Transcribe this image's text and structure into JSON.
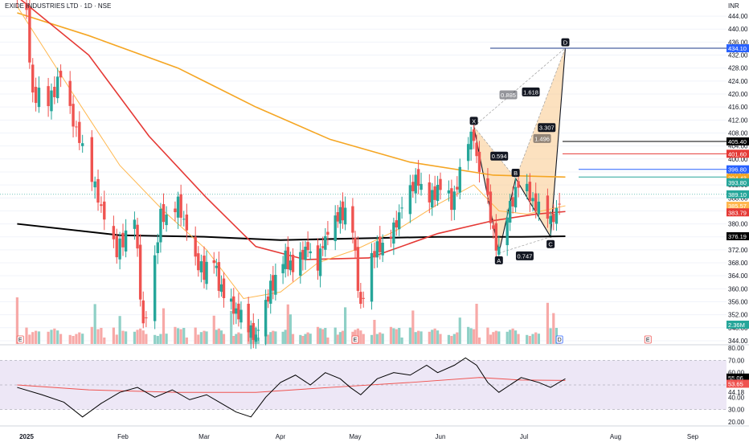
{
  "header": {
    "symbol_title": "EXIDE INDUSTRIES LTD · 1D · NSE",
    "currency": "INR"
  },
  "colors": {
    "up": "#26a69a",
    "down": "#ef5350",
    "up_vol": "#8fd0c6",
    "down_vol": "#f7a9a7",
    "ma_black": "#000000",
    "ma_orange": "#f5a623",
    "ma_red": "#e53935",
    "ma_light": "#ffb74d",
    "pattern_fill": "#f9c98a",
    "rsi": "#000000",
    "rsi_ma": "#ef5350",
    "rsi_band": "#ede7f6",
    "level_blue": "#1e3a8a",
    "level_black": "#000000",
    "level_red": "#e53935",
    "level_teal": "#26a69a"
  },
  "chart_data": [
    {
      "type": "candlestick",
      "title": "EXIDE INDUSTRIES LTD · 1D · NSE",
      "y_axis": {
        "unit": "INR",
        "ticks": [
          444,
          440,
          436,
          432,
          428,
          424,
          420,
          416,
          412,
          408,
          404,
          400,
          396,
          392,
          388,
          384,
          380,
          376,
          372,
          368,
          364,
          360,
          356,
          352,
          348,
          344
        ],
        "range": [
          343,
          446
        ]
      },
      "x_axis": {
        "labels": [
          "2025",
          "Feb",
          "Mar",
          "Apr",
          "May",
          "Jun",
          "Jul",
          "Aug",
          "Sep"
        ]
      },
      "series": [
        {
          "name": "price",
          "type": "candlestick",
          "points": []
        },
        {
          "name": "MA 200 (black)",
          "type": "line",
          "color": "#000000"
        },
        {
          "name": "MA 100 (orange)",
          "type": "line",
          "color": "#f5a623"
        },
        {
          "name": "MA 50 (red)",
          "type": "line",
          "color": "#e53935"
        },
        {
          "name": "MA 20 (light orange)",
          "type": "line",
          "color": "#ffb74d"
        },
        {
          "name": "Volume",
          "type": "bar",
          "last_label": "2.36M"
        }
      ],
      "harmonic_pattern": {
        "points": [
          {
            "label": "X",
            "price": 410.0
          },
          {
            "label": "A",
            "price": 371.0
          },
          {
            "label": "B",
            "price": 394.0
          },
          {
            "label": "C",
            "price": 376.0
          },
          {
            "label": "D",
            "price": 434.2
          }
        ],
        "ratios": [
          "0.594",
          "0.747",
          "1.618",
          "3.307",
          "0.885",
          "1.496"
        ]
      },
      "price_labels": [
        {
          "value": "434.10",
          "color": "#2962ff"
        },
        {
          "value": "405.40",
          "color": "#000000"
        },
        {
          "value": "401.60",
          "color": "#e53935"
        },
        {
          "value": "396.80",
          "color": "#2962ff"
        },
        {
          "value": "394.43",
          "color": "#f5a623"
        },
        {
          "value": "393.80",
          "color": "#26a69a"
        },
        {
          "value": "389.10",
          "color": "#26a69a"
        },
        {
          "value": "385.57",
          "color": "#ffb74d"
        },
        {
          "value": "383.79",
          "color": "#e53935"
        },
        {
          "value": "376.19",
          "color": "#000000"
        },
        {
          "value": "2.36M",
          "color": "#26a69a"
        }
      ],
      "event_markers": [
        "E",
        "E",
        "D",
        "E"
      ]
    },
    {
      "type": "line",
      "title": "",
      "y_axis": {
        "ticks": [
          80,
          70,
          60,
          50,
          40,
          30,
          20
        ],
        "range": [
          18,
          82
        ],
        "band": [
          30,
          70
        ]
      },
      "series": [
        {
          "name": "RSI",
          "color": "#000000",
          "last": "55.06"
        },
        {
          "name": "RSI MA",
          "color": "#ef5350",
          "last": "53.65"
        }
      ],
      "extra_labels": [
        "54.80",
        "44.18"
      ]
    }
  ]
}
